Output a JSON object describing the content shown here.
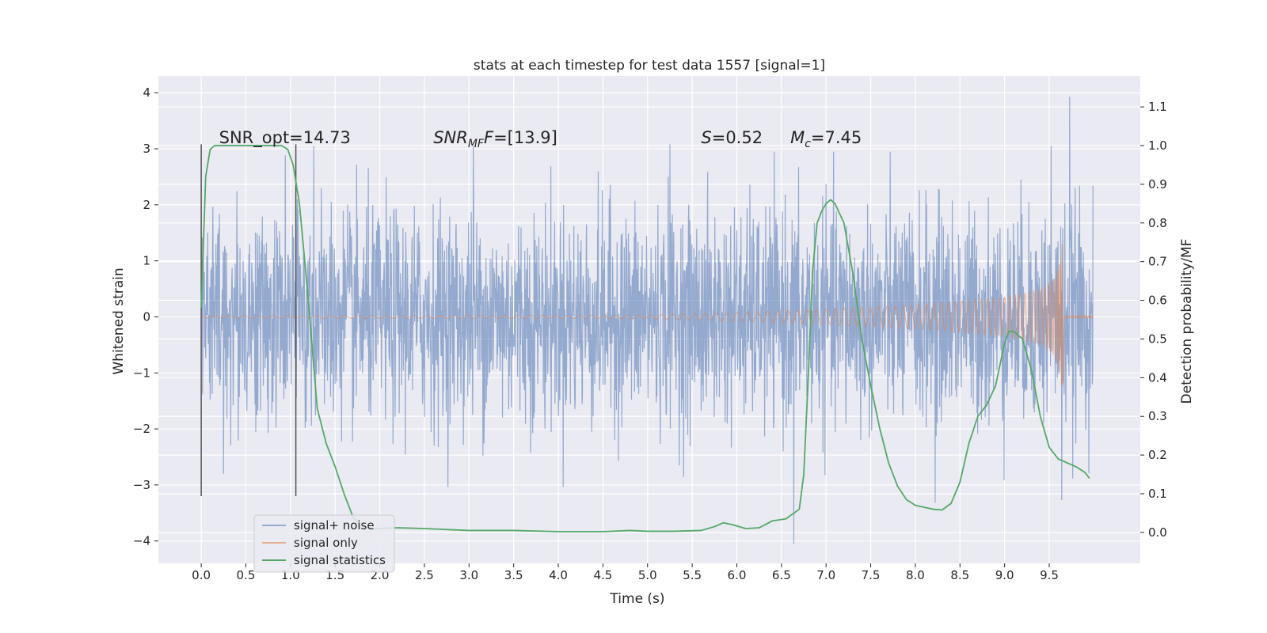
{
  "chart_data": {
    "type": "line",
    "title": "stats at each timestep for test data 1557 [signal=1]",
    "xlabel": "Time (s)",
    "ylabel": "Whitened strain",
    "y2label": "Detection probability/MF",
    "xlim": [
      -0.48,
      10.52
    ],
    "ylim": [
      -4.4,
      4.3
    ],
    "y2lim": [
      -0.08,
      1.18
    ],
    "xticks": [
      "0.0",
      "0.5",
      "1.0",
      "1.5",
      "2.0",
      "2.5",
      "3.0",
      "3.5",
      "4.0",
      "4.5",
      "5.0",
      "5.5",
      "6.0",
      "6.5",
      "7.0",
      "7.5",
      "8.0",
      "8.5",
      "9.0",
      "9.5"
    ],
    "xtick_values": [
      0.0,
      0.5,
      1.0,
      1.5,
      2.0,
      2.5,
      3.0,
      3.5,
      4.0,
      4.5,
      5.0,
      5.5,
      6.0,
      6.5,
      7.0,
      7.5,
      8.0,
      8.5,
      9.0,
      9.5
    ],
    "yticks": [
      "−4",
      "−3",
      "−2",
      "−1",
      "0",
      "1",
      "2",
      "3",
      "4"
    ],
    "ytick_values": [
      -4,
      -3,
      -2,
      -1,
      0,
      1,
      2,
      3,
      4
    ],
    "y2ticks": [
      "0.0",
      "0.1",
      "0.2",
      "0.3",
      "0.4",
      "0.5",
      "0.6",
      "0.7",
      "0.8",
      "0.9",
      "1.0",
      "1.1"
    ],
    "y2tick_values": [
      0.0,
      0.1,
      0.2,
      0.3,
      0.4,
      0.5,
      0.6,
      0.7,
      0.8,
      0.9,
      1.0,
      1.1
    ],
    "grid": true,
    "legend_position": "lower-left",
    "annotations": [
      {
        "label": "SNR_opt=14.73",
        "x": 0.2,
        "y": 3.1
      },
      {
        "label": "SNR",
        "sub": "MF",
        "rest": "=[13.9]",
        "x": 2.6,
        "y": 3.1
      },
      {
        "label": "S",
        "rest": "=0.52",
        "x": 5.6,
        "y": 3.1
      },
      {
        "label": "M",
        "sub": "c",
        "rest": "=7.45",
        "x": 6.6,
        "y": 3.1
      }
    ],
    "vlines": [
      {
        "x": 0.0,
        "ymin": -3.2,
        "ymax": 3.08
      },
      {
        "x": 1.06,
        "ymin": -3.2,
        "ymax": 3.08
      }
    ],
    "series": [
      {
        "name": "signal+ noise",
        "axis": "left",
        "color": "#4c72b0",
        "kind": "noisy_strain",
        "x_range": [
          0.0,
          9.99
        ],
        "sample_envelope": [
          -4.05,
          3.93
        ],
        "typical_amplitude": 0.95,
        "peak_samples": [
          {
            "x": 9.73,
            "y": 3.93
          },
          {
            "x": 6.64,
            "y": -4.05
          },
          {
            "x": 1.26,
            "y": 3.05
          },
          {
            "x": 5.25,
            "y": 3.08
          },
          {
            "x": 9.64,
            "y": -3.27
          },
          {
            "x": 8.22,
            "y": -3.32
          },
          {
            "x": 3.05,
            "y": 3.05
          },
          {
            "x": 9.52,
            "y": 3.05
          },
          {
            "x": 0.25,
            "y": -2.8
          }
        ]
      },
      {
        "name": "signal only",
        "axis": "left",
        "color": "#dd8452",
        "kind": "chirp_envelope",
        "x_range": [
          0.0,
          9.99
        ],
        "merger_time": 9.65,
        "envelope": [
          {
            "x": 0.0,
            "amp": 0.02
          },
          {
            "x": 5.0,
            "amp": 0.03
          },
          {
            "x": 6.0,
            "amp": 0.08
          },
          {
            "x": 7.0,
            "amp": 0.14
          },
          {
            "x": 8.0,
            "amp": 0.22
          },
          {
            "x": 9.0,
            "amp": 0.35
          },
          {
            "x": 9.4,
            "amp": 0.5
          },
          {
            "x": 9.55,
            "amp": 0.68
          },
          {
            "x": 9.62,
            "amp": 1.0
          },
          {
            "x": 9.65,
            "amp": 1.45
          },
          {
            "x": 9.67,
            "amp": 0.02
          }
        ]
      },
      {
        "name": "signal statistics",
        "axis": "right",
        "color": "#55a868",
        "x": [
          0.0,
          0.05,
          0.1,
          0.15,
          0.2,
          0.3,
          0.5,
          0.7,
          0.9,
          0.97,
          1.03,
          1.1,
          1.2,
          1.3,
          1.4,
          1.5,
          1.6,
          1.7,
          1.8,
          1.9,
          2.0,
          2.2,
          2.5,
          3.0,
          3.5,
          4.0,
          4.5,
          4.8,
          5.0,
          5.3,
          5.6,
          5.75,
          5.85,
          5.95,
          6.1,
          6.25,
          6.4,
          6.55,
          6.7,
          6.75,
          6.8,
          6.85,
          6.9,
          6.95,
          7.0,
          7.05,
          7.1,
          7.2,
          7.3,
          7.4,
          7.5,
          7.6,
          7.7,
          7.8,
          7.9,
          8.0,
          8.1,
          8.2,
          8.3,
          8.4,
          8.5,
          8.6,
          8.7,
          8.8,
          8.9,
          9.0,
          9.05,
          9.1,
          9.2,
          9.3,
          9.4,
          9.5,
          9.6,
          9.7,
          9.8,
          9.9,
          9.95
        ],
        "values": [
          0.58,
          0.92,
          0.99,
          1.0,
          1.0,
          1.0,
          1.0,
          1.0,
          1.0,
          0.99,
          0.95,
          0.85,
          0.6,
          0.32,
          0.23,
          0.17,
          0.1,
          0.04,
          0.015,
          0.01,
          0.01,
          0.012,
          0.01,
          0.005,
          0.005,
          0.002,
          0.002,
          0.005,
          0.003,
          0.003,
          0.005,
          0.015,
          0.025,
          0.02,
          0.01,
          0.012,
          0.03,
          0.035,
          0.06,
          0.15,
          0.4,
          0.68,
          0.8,
          0.83,
          0.85,
          0.86,
          0.85,
          0.8,
          0.67,
          0.5,
          0.38,
          0.27,
          0.18,
          0.12,
          0.085,
          0.07,
          0.065,
          0.06,
          0.058,
          0.075,
          0.13,
          0.23,
          0.3,
          0.33,
          0.38,
          0.49,
          0.52,
          0.52,
          0.5,
          0.42,
          0.3,
          0.22,
          0.19,
          0.18,
          0.17,
          0.155,
          0.14
        ]
      }
    ]
  }
}
